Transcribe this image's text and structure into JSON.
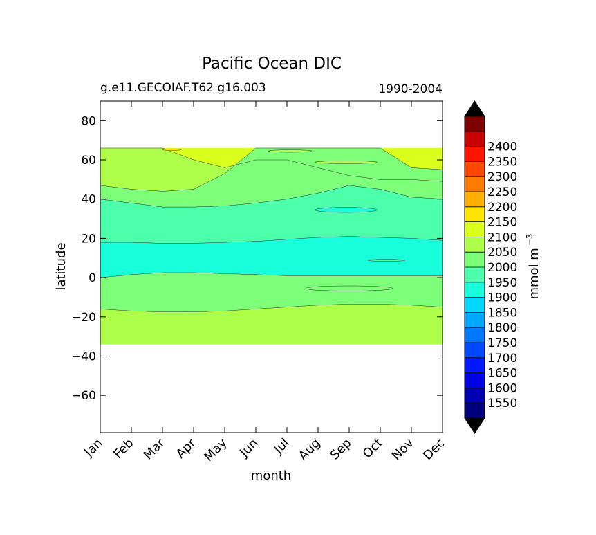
{
  "chart_data": {
    "type": "contourf",
    "title": "Pacific Ocean DIC",
    "subtitle_left": "g.e11.GECOIAF.T62 g16.003",
    "subtitle_right": "1990-2004",
    "xlabel": "month",
    "ylabel": "latitude",
    "x_ticks": [
      "Jan",
      "Feb",
      "Mar",
      "Apr",
      "May",
      "Jun",
      "Jul",
      "Aug",
      "Sep",
      "Oct",
      "Nov",
      "Dec"
    ],
    "xlim": [
      1,
      12
    ],
    "ylim": [
      -79,
      90
    ],
    "y_ticks": [
      80,
      60,
      40,
      20,
      0,
      -20,
      -40,
      -60
    ],
    "y_tick_labels": [
      "80",
      "60",
      "40",
      "20",
      "0",
      "−20",
      "−40",
      "−60"
    ],
    "data_lat_range": [
      -34,
      66
    ],
    "colorbar": {
      "label": "mmol m",
      "label_exponent": "−3",
      "levels": [
        1550,
        1600,
        1650,
        1700,
        1750,
        1800,
        1850,
        1900,
        1950,
        2000,
        2050,
        2100,
        2150,
        2200,
        2250,
        2300,
        2350,
        2400
      ],
      "tick_labels": [
        "1550",
        "1600",
        "1650",
        "1700",
        "1750",
        "1800",
        "1850",
        "1900",
        "1950",
        "2000",
        "2050",
        "2100",
        "2150",
        "2200",
        "2250",
        "2300",
        "2350",
        "2400"
      ],
      "colors": [
        "#00007f",
        "#0000b2",
        "#0000e5",
        "#0018ff",
        "#0048ff",
        "#0078ff",
        "#00a8ff",
        "#00d8ff",
        "#18ffdc",
        "#4cffaa",
        "#7dff7a",
        "#adff4a",
        "#daff1c",
        "#ffe500",
        "#ffb000",
        "#ff7b00",
        "#ff4700",
        "#ff1400",
        "#c80000",
        "#7f0000"
      ]
    },
    "contour_boundaries": [
      {
        "level": 2100,
        "lat": [
          66,
          66,
          66,
          60,
          56,
          60,
          60,
          56,
          52,
          50,
          50,
          49
        ]
      },
      {
        "level": 2050,
        "lat": [
          47,
          45,
          44,
          45,
          53,
          66,
          66,
          66,
          66,
          66,
          56,
          55
        ]
      },
      {
        "level": 2000,
        "lat": [
          40,
          38,
          36,
          36,
          36.5,
          38,
          40,
          43,
          47,
          45,
          41,
          40
        ]
      },
      {
        "level": 1950,
        "lat": [
          18,
          18,
          17.5,
          17.5,
          18,
          18.5,
          19.5,
          20.5,
          21,
          20.5,
          20,
          19
        ]
      },
      {
        "level": 1900,
        "lat": [
          0,
          1.5,
          2.5,
          2.5,
          2,
          1.5,
          1,
          1,
          1,
          1,
          1,
          1
        ]
      },
      {
        "level": 1950,
        "lat": [
          -16,
          -17,
          -17.5,
          -17.5,
          -17,
          -16,
          -15,
          -14,
          -13.5,
          -13.5,
          -14,
          -15
        ]
      }
    ],
    "contour_patches": [
      {
        "name": "patch-1900-sep",
        "color_index": 8,
        "center": [
          8.9,
          34.5
        ],
        "radius": [
          1.0,
          1.3
        ]
      },
      {
        "name": "patch-2050-aug",
        "color_index": 10,
        "center": [
          9.0,
          -5.5
        ],
        "radius": [
          1.4,
          1.3
        ]
      },
      {
        "name": "patch-2050-jul",
        "color_index": 11,
        "center": [
          7.1,
          64.5
        ],
        "radius": [
          0.7,
          0.6
        ]
      },
      {
        "name": "patch-2050-aug-north",
        "color_index": 11,
        "center": [
          8.9,
          58.8
        ],
        "radius": [
          1.0,
          0.7
        ]
      },
      {
        "name": "patch-1950-oct",
        "color_index": 9,
        "center": [
          10.2,
          8.8
        ],
        "radius": [
          0.6,
          0.5
        ]
      },
      {
        "name": "patch-2150-mar",
        "color_index": 13,
        "center": [
          3.3,
          65.2
        ],
        "radius": [
          0.3,
          0.4
        ]
      }
    ]
  }
}
